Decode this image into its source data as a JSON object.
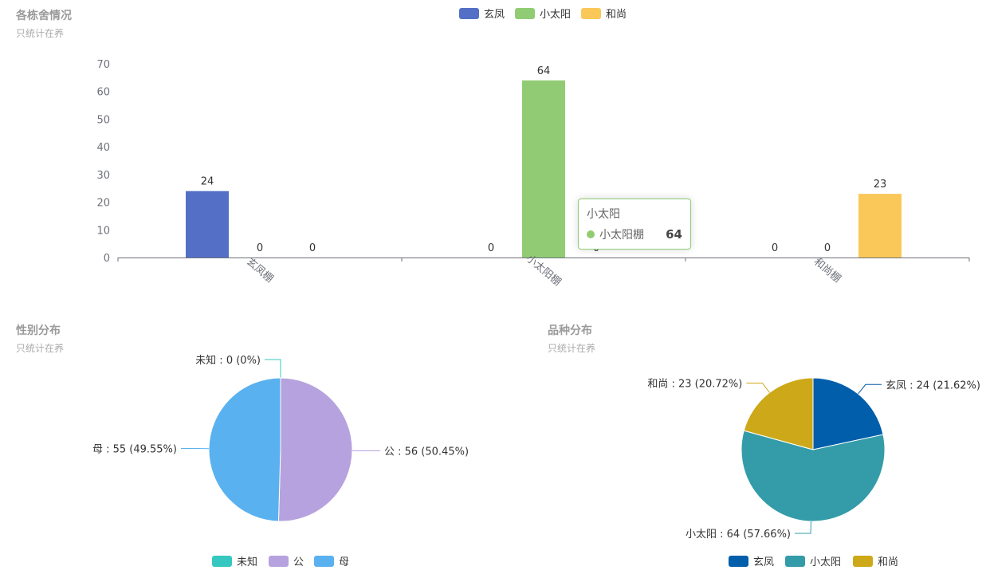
{
  "bar_panel": {
    "title": "各栋舍情况",
    "subtitle": "只统计在养"
  },
  "gender_panel": {
    "title": "性别分布",
    "subtitle": "只统计在养"
  },
  "breed_panel": {
    "title": "品种分布",
    "subtitle": "只统计在养"
  },
  "tooltip": {
    "title": "小太阳",
    "series": "小太阳棚",
    "value": "64",
    "color": "#91cc75"
  },
  "chart_data": [
    {
      "type": "bar",
      "categories": [
        "玄凤棚",
        "小太阳棚",
        "和尚棚"
      ],
      "series": [
        {
          "name": "玄凤",
          "values": [
            24,
            0,
            0
          ],
          "color": "#5470c6"
        },
        {
          "name": "小太阳",
          "values": [
            0,
            64,
            0
          ],
          "color": "#91cc75"
        },
        {
          "name": "和尚",
          "values": [
            0,
            0,
            23
          ],
          "color": "#fac858"
        }
      ],
      "ylim": [
        0,
        70
      ],
      "yticks": [
        0,
        10,
        20,
        30,
        40,
        50,
        60,
        70
      ],
      "legend": "top-center"
    },
    {
      "type": "pie",
      "labels": [
        "未知",
        "公",
        "母"
      ],
      "values": [
        0,
        56,
        55
      ],
      "percent_labels": [
        "未知 : 0 (0%)",
        "公 : 56 (50.45%)",
        "母 : 55 (49.55%)"
      ],
      "colors": [
        "#37c7c1",
        "#b6a2de",
        "#5ab1ef"
      ],
      "legend": "bottom-center"
    },
    {
      "type": "pie",
      "labels": [
        "玄凤",
        "小太阳",
        "和尚"
      ],
      "values": [
        24,
        64,
        23
      ],
      "percent_labels": [
        "玄凤 : 24 (21.62%)",
        "小太阳 : 64 (57.66%)",
        "和尚 : 23 (20.72%)"
      ],
      "colors": [
        "#005eaa",
        "#339ca8",
        "#cda819"
      ],
      "legend": "bottom-center"
    }
  ]
}
